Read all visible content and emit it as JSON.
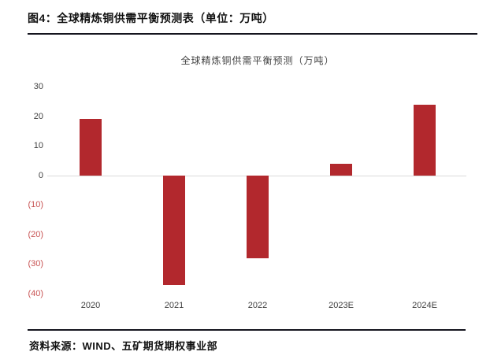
{
  "header": {
    "title": "图4：全球精炼铜供需平衡预测表（单位：万吨）"
  },
  "footer": {
    "source": "资料来源：WIND、五矿期货期权事业部"
  },
  "chart_data": {
    "type": "bar",
    "title": "全球精炼铜供需平衡预测（万吨）",
    "categories": [
      "2020",
      "2021",
      "2022",
      "2023E",
      "2024E"
    ],
    "values": [
      19,
      -37,
      -28,
      4,
      24
    ],
    "unit": "万吨",
    "xlabel": "",
    "ylabel": "",
    "ylim": [
      -40,
      30
    ],
    "yticks": [
      {
        "value": 30,
        "label": "30"
      },
      {
        "value": 20,
        "label": "20"
      },
      {
        "value": 10,
        "label": "10"
      },
      {
        "value": 0,
        "label": "0"
      },
      {
        "value": -10,
        "label": "(10)"
      },
      {
        "value": -20,
        "label": "(20)"
      },
      {
        "value": -30,
        "label": "(30)"
      },
      {
        "value": -40,
        "label": "(40)"
      }
    ],
    "grid": false,
    "legend_position": "none",
    "colors": {
      "bar": "#b2282d",
      "positive_tick_label": "#3f3f3f",
      "negative_tick_label": "#c85252",
      "axis_line": "#d9d9d9"
    }
  }
}
